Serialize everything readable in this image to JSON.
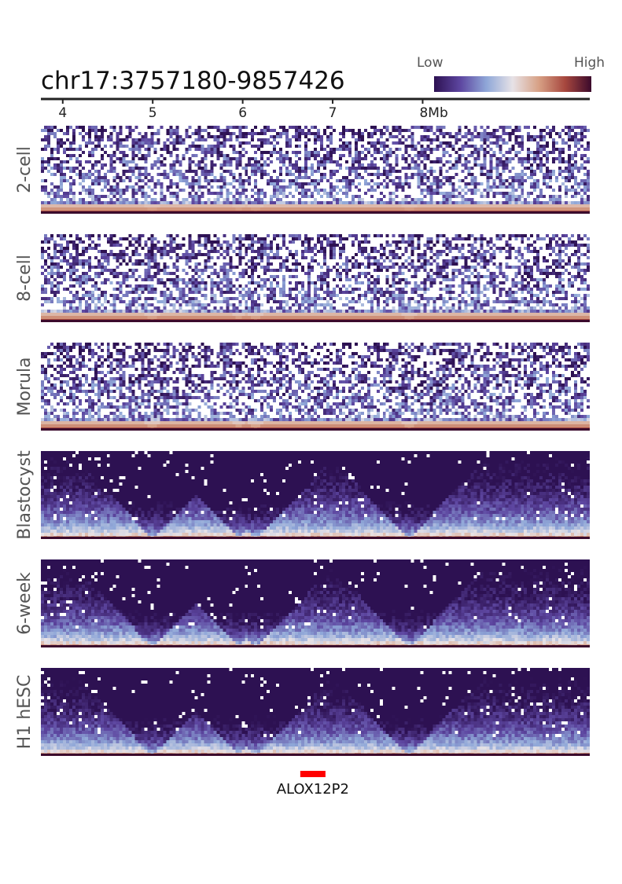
{
  "chart_data": {
    "type": "heatmap",
    "title": "chr17:3757180-9857426",
    "region": {
      "chrom": "chr17",
      "start": 3757180,
      "end": 9857426
    },
    "colorbar": {
      "low_label": "Low",
      "high_label": "High",
      "colors": [
        "#2d1152",
        "#5d46a0",
        "#8fa7d8",
        "#e7e2e6",
        "#d7a085",
        "#a7473e",
        "#3b0a2c"
      ]
    },
    "x_axis": {
      "unit": "Mb",
      "ticks": [
        {
          "value": 4,
          "label": "4"
        },
        {
          "value": 5,
          "label": "5"
        },
        {
          "value": 6,
          "label": "6"
        },
        {
          "value": 7,
          "label": "7"
        },
        {
          "value": 8,
          "label": "8Mb"
        }
      ]
    },
    "tracks": [
      {
        "name": "2-cell",
        "signal": "sparse",
        "domain_strength": 0.1
      },
      {
        "name": "8-cell",
        "signal": "sparse",
        "domain_strength": 0.2
      },
      {
        "name": "Morula",
        "signal": "sparse",
        "domain_strength": 0.25
      },
      {
        "name": "Blastocyst",
        "signal": "dense",
        "domain_strength": 1.0
      },
      {
        "name": "6-week",
        "signal": "dense",
        "domain_strength": 0.95
      },
      {
        "name": "H1 hESC",
        "signal": "dense",
        "domain_strength": 0.85
      }
    ],
    "domain_boundaries_mb": [
      5.0,
      5.95,
      6.15,
      7.85
    ],
    "gene": {
      "name": "ALOX12P2",
      "start_mb": 6.64,
      "end_mb": 6.92,
      "color": "#ff0000"
    }
  }
}
